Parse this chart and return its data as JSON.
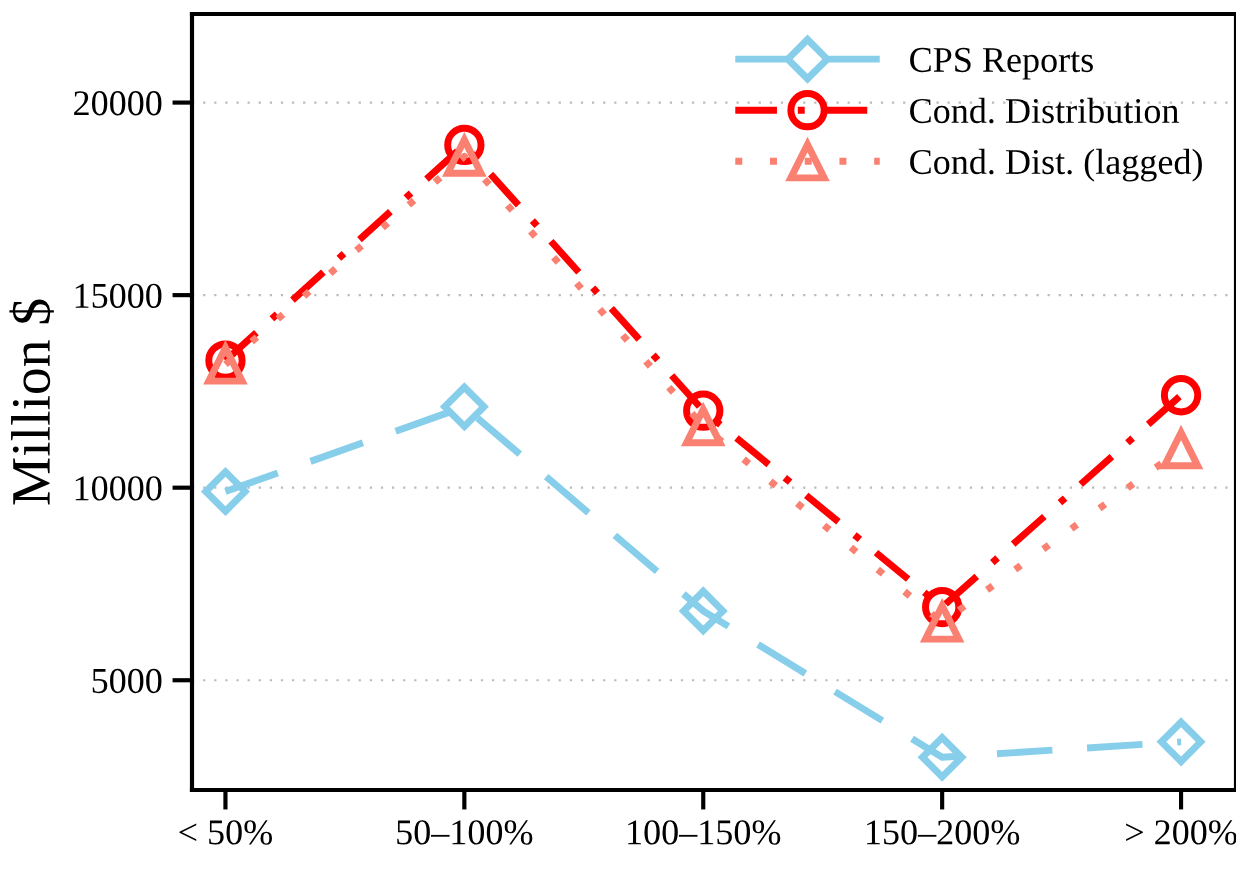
{
  "chart_data": {
    "type": "line",
    "ylabel": "Million $",
    "categories": [
      "< 50%",
      "50–100%",
      "100–150%",
      "150–200%",
      "> 200%"
    ],
    "series": [
      {
        "name": "CPS Reports",
        "color": "#87ceeb",
        "marker": "diamond",
        "line_style": "dashed",
        "values": [
          9900,
          12100,
          6800,
          3000,
          3400
        ]
      },
      {
        "name": "Cond. Distribution",
        "color": "#ff0000",
        "marker": "circle",
        "line_style": "dashdot",
        "values": [
          13300,
          18900,
          12000,
          6900,
          12400
        ]
      },
      {
        "name": "Cond. Dist. (lagged)",
        "color": "#fa8072",
        "marker": "triangle",
        "line_style": "dotted",
        "values": [
          13200,
          18600,
          11600,
          6500,
          11000
        ]
      }
    ],
    "ylim": [
      2150,
      22300
    ],
    "yticks": [
      5000,
      10000,
      15000,
      20000
    ],
    "grid": "y",
    "legend": "top right"
  }
}
